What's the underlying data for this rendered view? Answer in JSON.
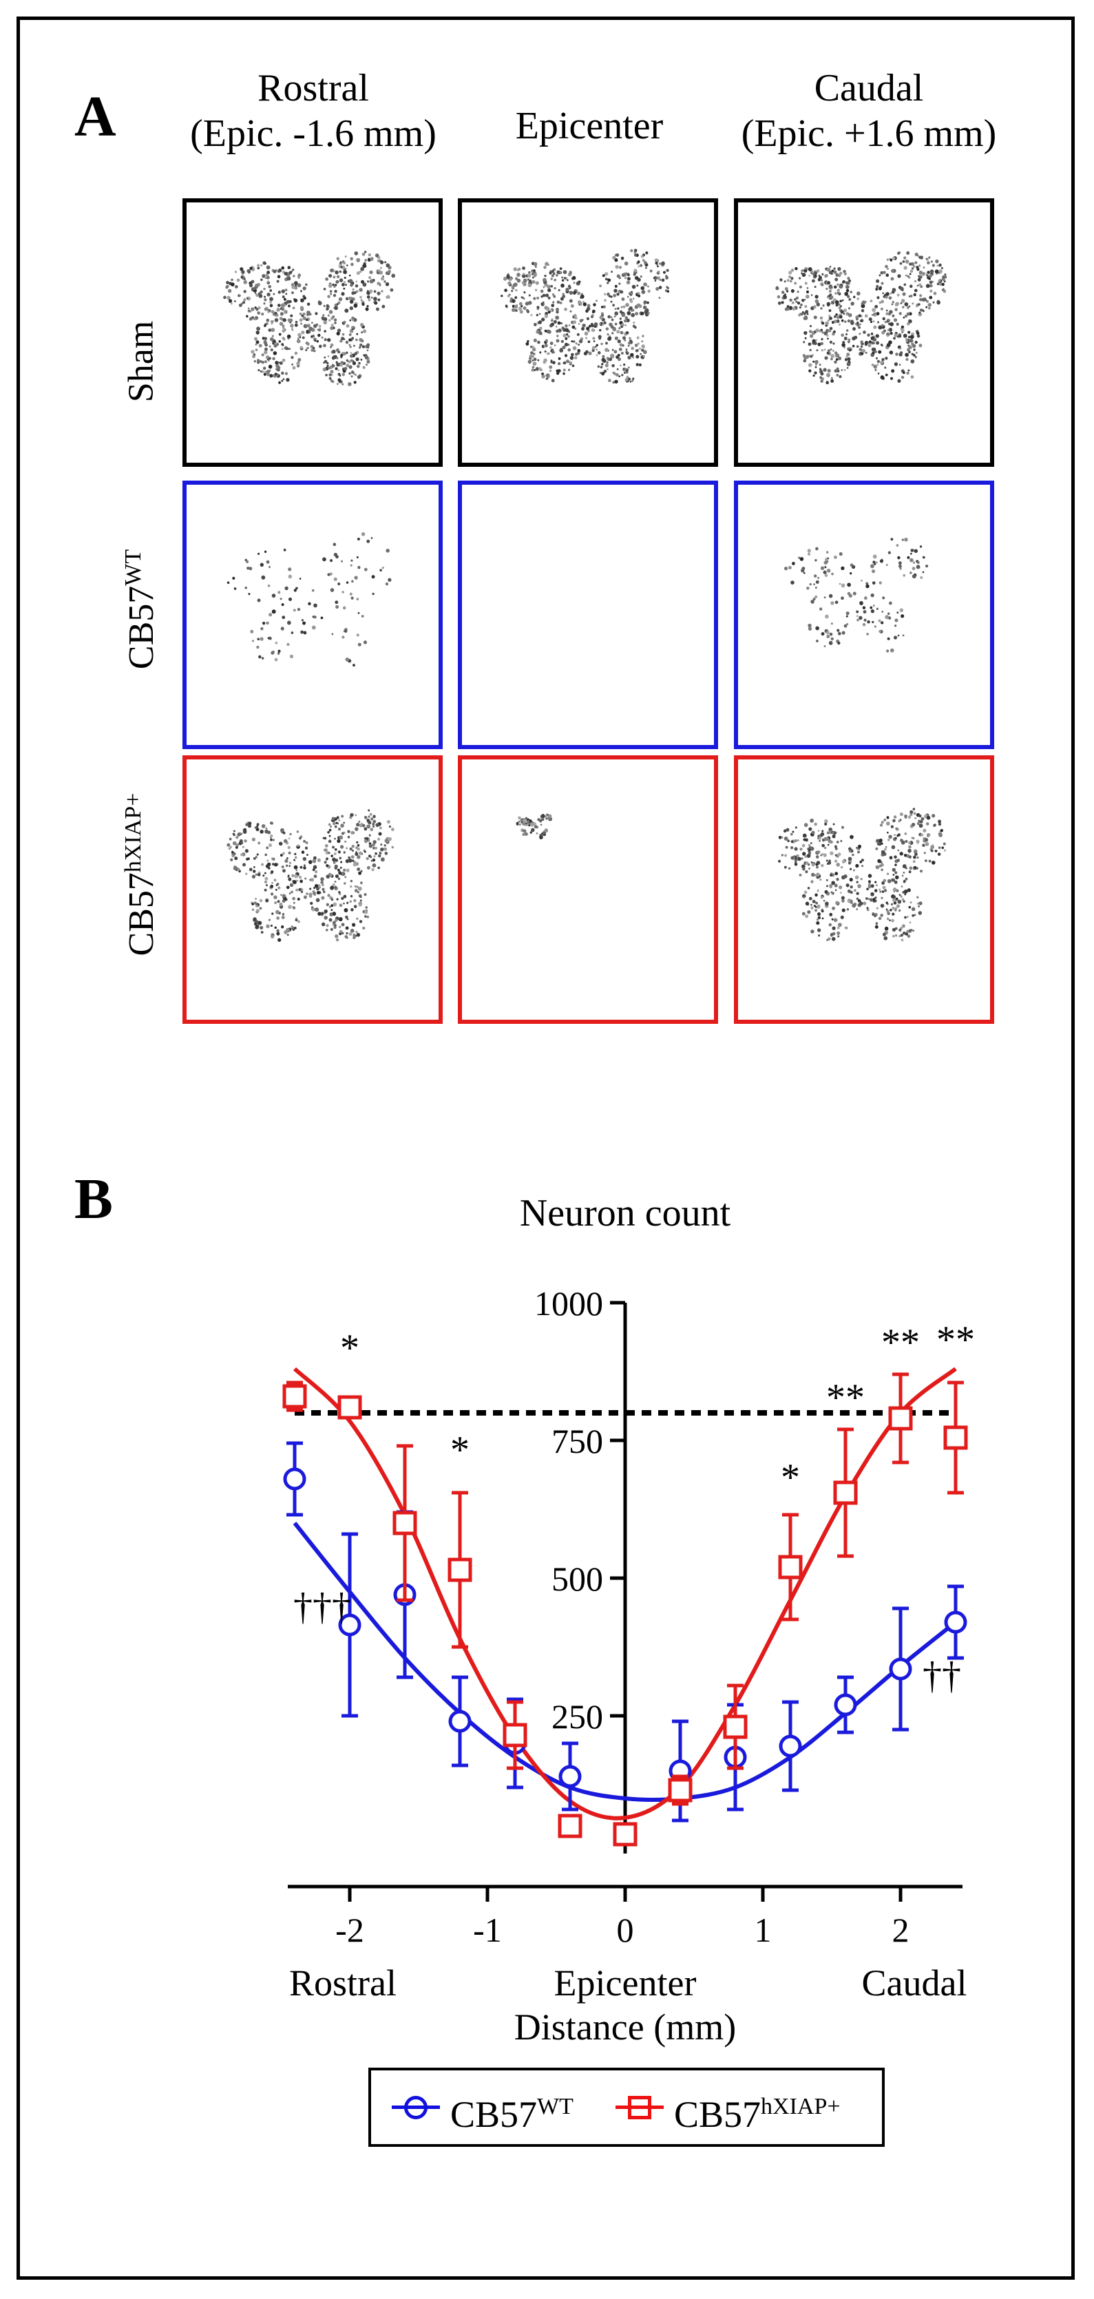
{
  "panel_a": {
    "letter": "A",
    "columns": [
      {
        "line1": "Rostral",
        "line2": "(Epic. -1.6 mm)"
      },
      {
        "line1": "Epicenter",
        "line2": ""
      },
      {
        "line1": "Caudal",
        "line2": "(Epic. +1.6 mm)"
      }
    ],
    "rows": [
      {
        "base": "Sham",
        "sup": "",
        "border": "#000000"
      },
      {
        "base": "CB57",
        "sup": "WT",
        "border": "#1a1adc"
      },
      {
        "base": "CB57",
        "sup": "hXIAP+",
        "border": "#e21b1b"
      }
    ]
  },
  "panel_b": {
    "letter": "B"
  },
  "legend": {
    "wt": {
      "base": "CB57",
      "sup": "WT"
    },
    "hxiap": {
      "base": "CB57",
      "sup": "hXIAP+"
    }
  },
  "chart_data": {
    "type": "scatter",
    "title": "Neuron count",
    "xlabel": "Distance (mm)",
    "ylabel": "",
    "xlim": [
      -2.4,
      2.4
    ],
    "ylim": [
      0,
      1000
    ],
    "x_ticks": [
      "-2",
      "-1",
      "0",
      "1",
      "2"
    ],
    "y_ticks": [
      "250",
      "500",
      "750",
      "1000"
    ],
    "region_labels": [
      "Rostral",
      "Epicenter",
      "Caudal"
    ],
    "reference_line": {
      "y": 800,
      "style": "dashed",
      "color": "#000000"
    },
    "series": [
      {
        "name": "CB57WT",
        "color": "#1a1adc",
        "marker": "circle",
        "x": [
          -2.4,
          -2.0,
          -1.6,
          -1.2,
          -0.8,
          -0.4,
          0.4,
          0.8,
          1.2,
          1.6,
          2.0,
          2.4
        ],
        "y": [
          680,
          415,
          470,
          240,
          200,
          140,
          150,
          175,
          195,
          270,
          335,
          420
        ],
        "err": [
          65,
          165,
          150,
          80,
          80,
          60,
          90,
          95,
          80,
          50,
          110,
          65
        ],
        "fit": [
          600,
          475,
          355,
          255,
          175,
          120,
          100,
          120,
          175,
          255,
          340,
          420
        ]
      },
      {
        "name": "CB57hXIAP+",
        "color": "#e21b1b",
        "marker": "square",
        "x": [
          -2.4,
          -2.0,
          -1.6,
          -1.2,
          -0.8,
          -0.4,
          0.0,
          0.4,
          0.8,
          1.2,
          1.6,
          2.0,
          2.4
        ],
        "y": [
          830,
          810,
          600,
          515,
          215,
          50,
          35,
          115,
          230,
          520,
          655,
          790,
          755
        ],
        "err": [
          25,
          0,
          140,
          140,
          60,
          0,
          0,
          25,
          75,
          95,
          115,
          80,
          100
        ],
        "fit": [
          880,
          785,
          615,
          390,
          210,
          95,
          65,
          120,
          270,
          460,
          650,
          800,
          880
        ]
      }
    ],
    "annotations": [
      {
        "text": "*",
        "x": -2.0,
        "y": 895
      },
      {
        "text": "*",
        "x": -1.2,
        "y": 710
      },
      {
        "text": "†††",
        "x": -2.2,
        "y": 425
      },
      {
        "text": "*",
        "x": 1.2,
        "y": 660
      },
      {
        "text": "**",
        "x": 1.6,
        "y": 805
      },
      {
        "text": "**",
        "x": 2.0,
        "y": 905
      },
      {
        "text": "**",
        "x": 2.4,
        "y": 910
      },
      {
        "text": "††",
        "x": 2.3,
        "y": 300
      }
    ]
  }
}
